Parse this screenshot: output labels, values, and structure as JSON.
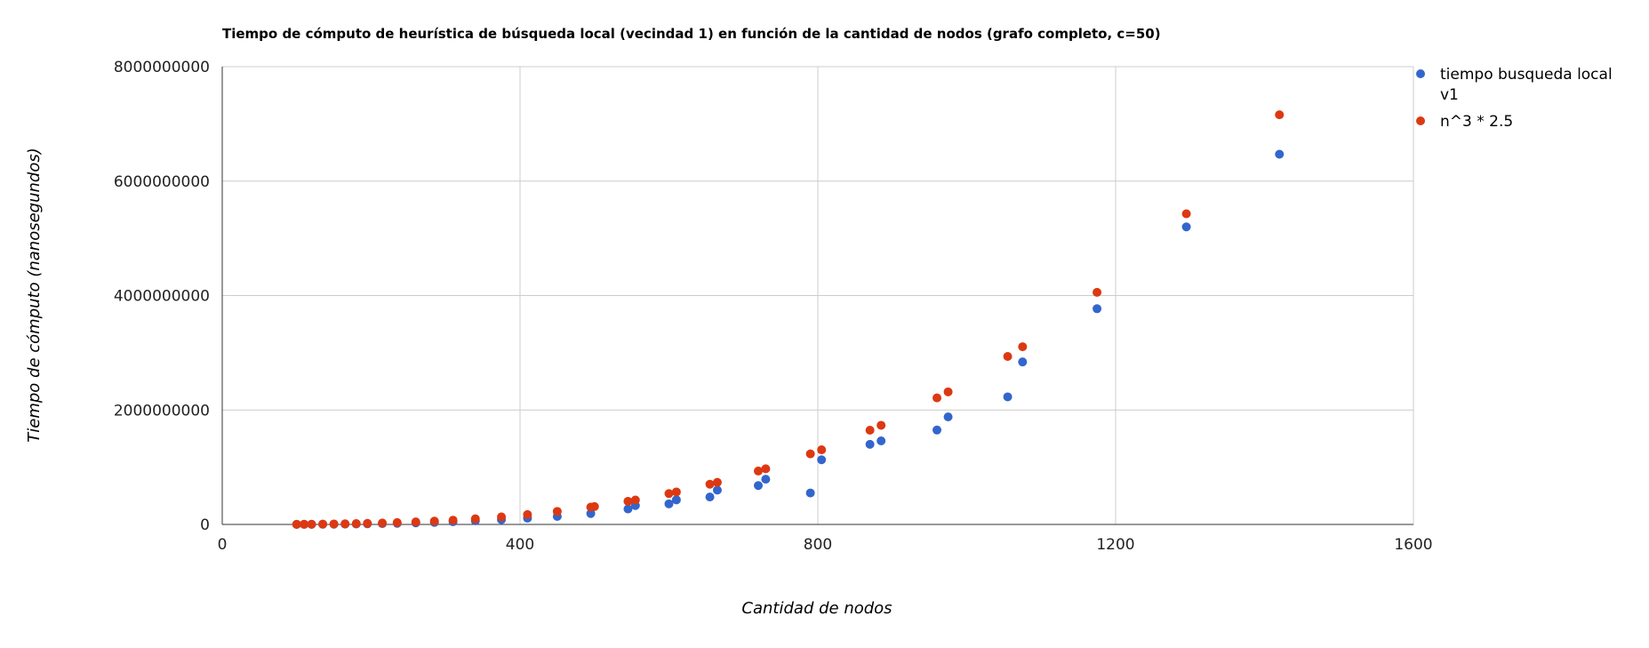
{
  "chart_data": {
    "type": "scatter",
    "title": "Tiempo de cómputo de heurística de búsqueda local (vecindad 1) en función de la cantidad de nodos (grafo completo, c=50)",
    "xlabel": "Cantidad de nodos",
    "ylabel": "Tiempo de cómputo (nanosegundos)",
    "xlim": [
      0,
      1600
    ],
    "ylim": [
      0,
      8000000000
    ],
    "xticks": [
      "0",
      "400",
      "800",
      "1200",
      "1600"
    ],
    "yticks": [
      "0",
      "2000000000",
      "4000000000",
      "6000000000",
      "8000000000"
    ],
    "grid": true,
    "legend_position": "right",
    "legend": [
      "tiempo busqueda local v1",
      "n^3 * 2.5"
    ],
    "series": [
      {
        "name": "tiempo busqueda local v1",
        "color": "#3366cc",
        "points": [
          [
            100,
            1000000
          ],
          [
            110,
            1500000
          ],
          [
            120,
            2000000
          ],
          [
            135,
            3000000
          ],
          [
            150,
            4500000
          ],
          [
            165,
            6000000
          ],
          [
            180,
            8000000
          ],
          [
            195,
            11000000
          ],
          [
            215,
            15000000
          ],
          [
            235,
            20000000
          ],
          [
            260,
            27000000
          ],
          [
            285,
            36000000
          ],
          [
            310,
            48000000
          ],
          [
            340,
            64000000
          ],
          [
            375,
            84000000
          ],
          [
            410,
            110000000
          ],
          [
            450,
            140000000
          ],
          [
            495,
            190000000
          ],
          [
            545,
            270000000
          ],
          [
            555,
            330000000
          ],
          [
            600,
            360000000
          ],
          [
            610,
            430000000
          ],
          [
            655,
            480000000
          ],
          [
            665,
            600000000
          ],
          [
            720,
            680000000
          ],
          [
            730,
            790000000
          ],
          [
            790,
            550000000
          ],
          [
            805,
            1130000000
          ],
          [
            870,
            1400000000
          ],
          [
            885,
            1460000000
          ],
          [
            960,
            1650000000
          ],
          [
            975,
            1880000000
          ],
          [
            1055,
            2230000000
          ],
          [
            1075,
            2840000000
          ],
          [
            1175,
            3770000000
          ],
          [
            1295,
            5200000000
          ],
          [
            1420,
            6470000000
          ]
        ]
      },
      {
        "name": "n^3 * 2.5",
        "color": "#dc3912",
        "points": [
          [
            100,
            2500000
          ],
          [
            110,
            3300000
          ],
          [
            120,
            4300000
          ],
          [
            135,
            6200000
          ],
          [
            150,
            8400000
          ],
          [
            165,
            11200000
          ],
          [
            180,
            14600000
          ],
          [
            195,
            18500000
          ],
          [
            215,
            24800000
          ],
          [
            235,
            32400000
          ],
          [
            260,
            43900000
          ],
          [
            285,
            57900000
          ],
          [
            310,
            74500000
          ],
          [
            340,
            98300000
          ],
          [
            375,
            131800000
          ],
          [
            410,
            172300000
          ],
          [
            450,
            227800000
          ],
          [
            495,
            303200000
          ],
          [
            500,
            312500000
          ],
          [
            545,
            404700000
          ],
          [
            555,
            427400000
          ],
          [
            600,
            540000000
          ],
          [
            610,
            567500000
          ],
          [
            655,
            702500000
          ],
          [
            665,
            735200000
          ],
          [
            720,
            933100000
          ],
          [
            730,
            972500000
          ],
          [
            790,
            1232600000
          ],
          [
            805,
            1304200000
          ],
          [
            870,
            1646300000
          ],
          [
            885,
            1732900000
          ],
          [
            960,
            2211800000
          ],
          [
            975,
            2317200000
          ],
          [
            1055,
            2935700000
          ],
          [
            1075,
            3105800000
          ],
          [
            1175,
            4055900000
          ],
          [
            1295,
            5429500000
          ],
          [
            1420,
            7158900000
          ]
        ]
      }
    ]
  }
}
